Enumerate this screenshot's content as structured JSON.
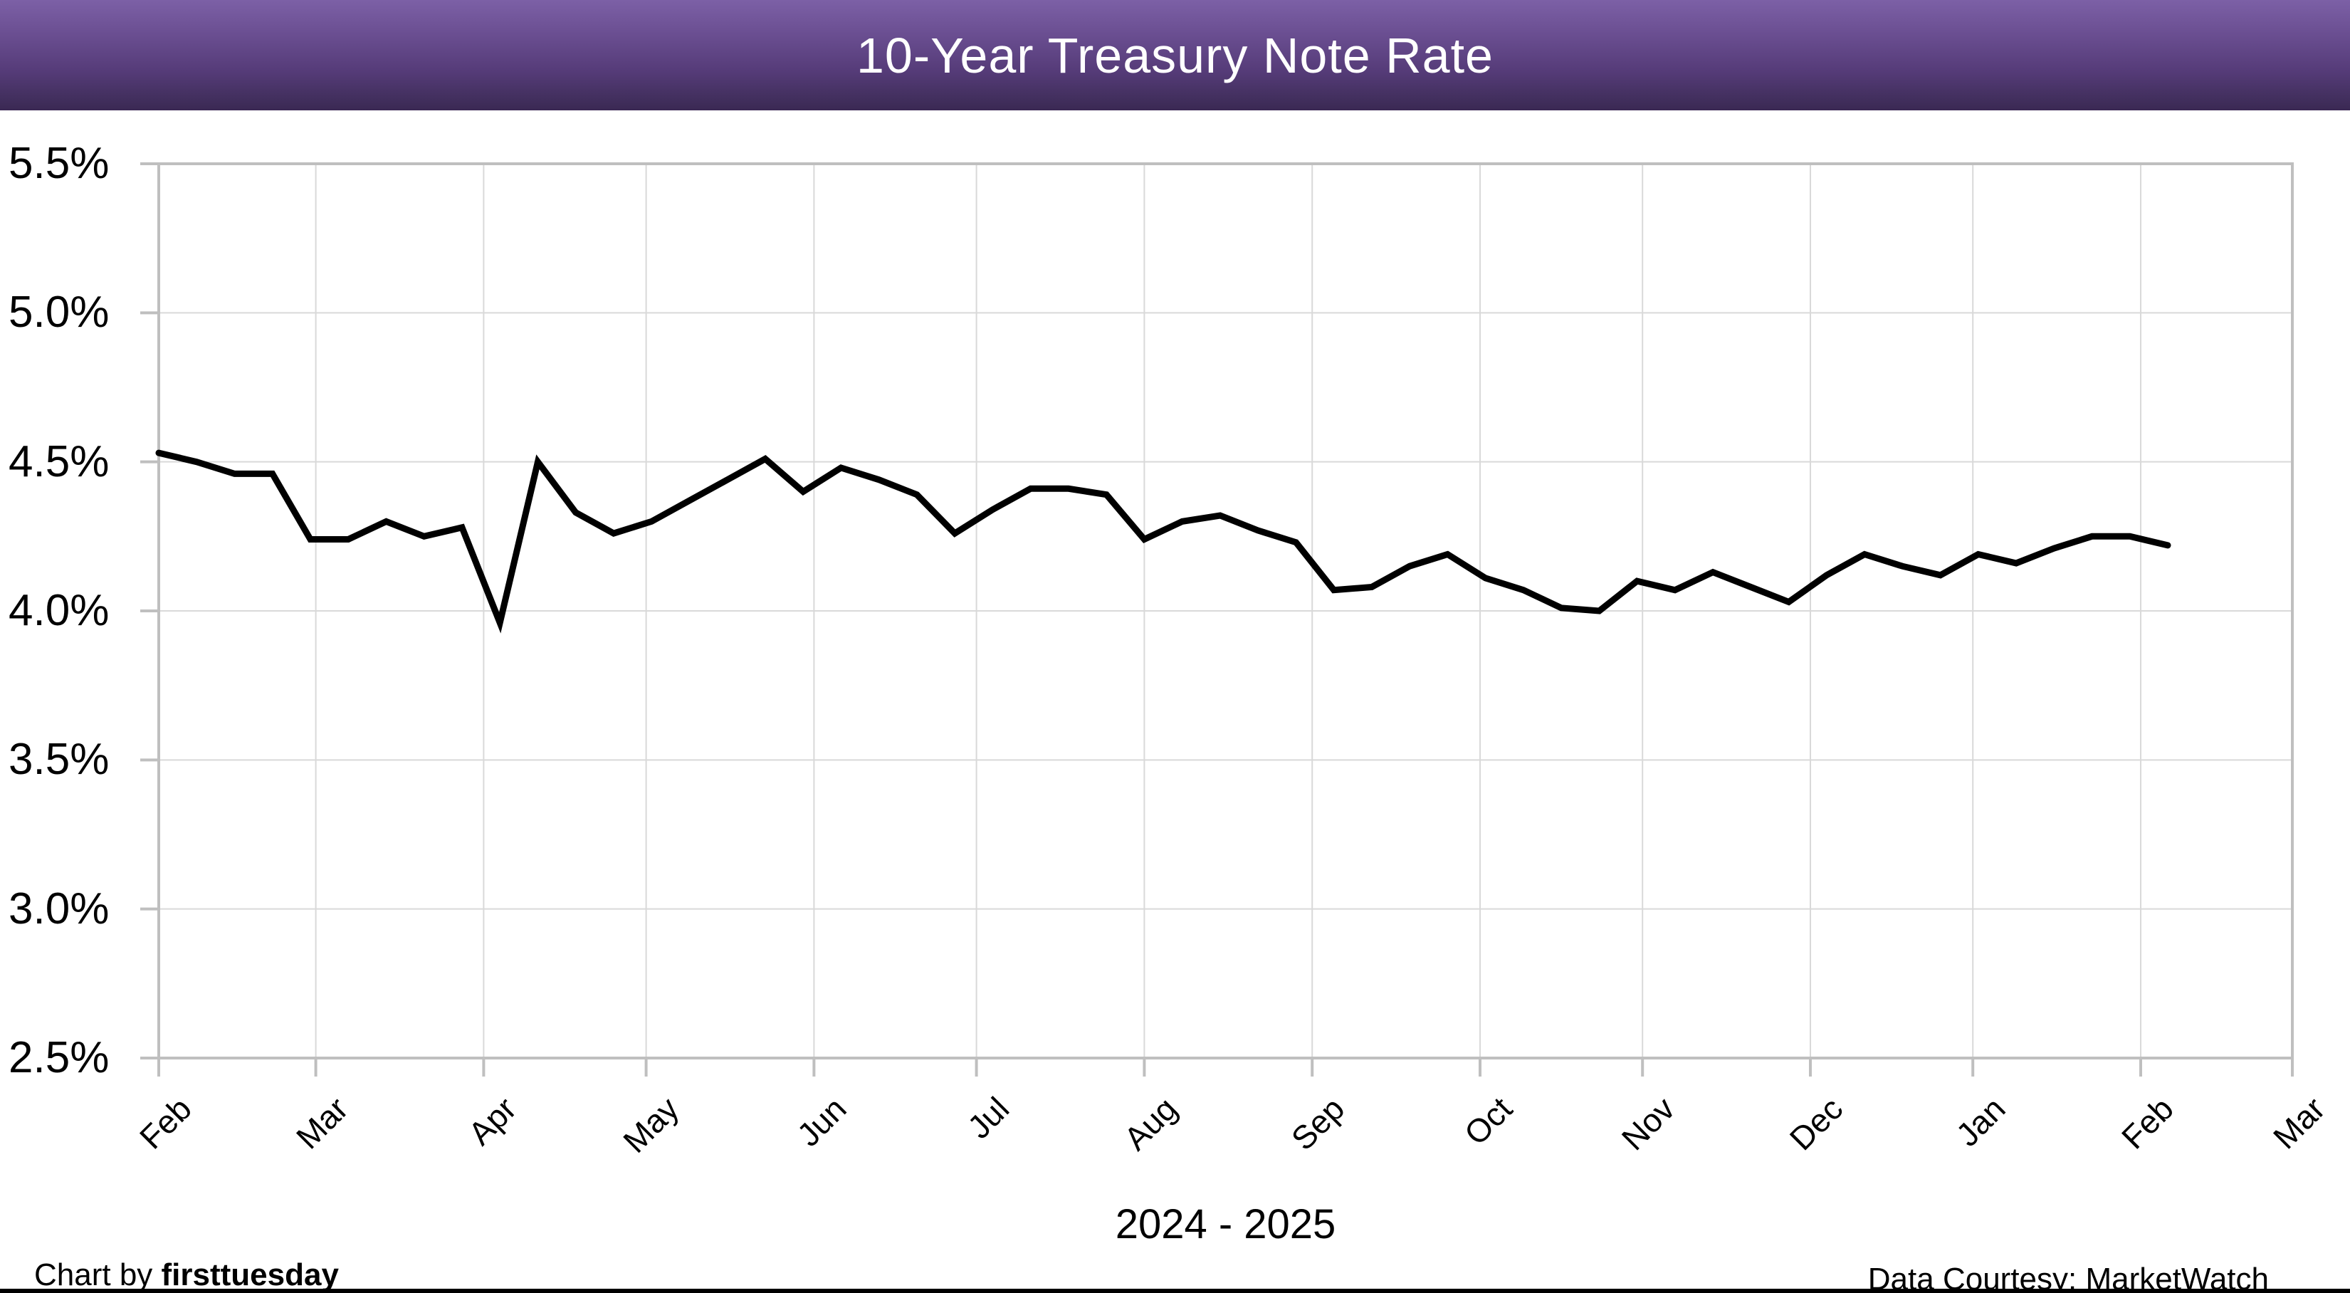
{
  "header": {
    "title": "10-Year Treasury Note Rate"
  },
  "footer": {
    "credit_prefix": "Chart by ",
    "credit_name": "firsttuesday",
    "data_courtesy": "Data Courtesy: MarketWatch"
  },
  "colors": {
    "header_purple_top": "#7c60a6",
    "header_purple_bottom": "#3a2853",
    "title_text": "#ffffff",
    "line": "#000000",
    "gridline": "#d9d9d9",
    "axis": "#bfbfbf",
    "text": "#000000"
  },
  "chart_data": {
    "type": "line",
    "title": "10-Year Treasury Note Rate",
    "xlabel": "2024 - 2025",
    "ylabel": "",
    "ylim": [
      2.5,
      5.5
    ],
    "grid": true,
    "legend": "none",
    "y_ticks": {
      "labels": [
        "5.5%",
        "5.0%",
        "4.5%",
        "4.0%",
        "3.5%",
        "3.0%",
        "2.5%"
      ],
      "values": [
        5.5,
        5.0,
        4.5,
        4.0,
        3.5,
        3.0,
        2.5
      ]
    },
    "x_ticks": {
      "labels": [
        "Feb",
        "Mar",
        "Apr",
        "May",
        "Jun",
        "Jul",
        "Aug",
        "Sep",
        "Oct",
        "Nov",
        "Dec",
        "Jan",
        "Feb",
        "Mar"
      ],
      "day_offsets": [
        0,
        29,
        60,
        90,
        121,
        151,
        182,
        213,
        244,
        274,
        305,
        335,
        366,
        394
      ],
      "span_days": 394
    },
    "series": [
      {
        "name": "10-Year Treasury Note Rate",
        "frequency": "weekly",
        "start": "Feb 2024",
        "values": [
          4.53,
          4.5,
          4.46,
          4.46,
          4.24,
          4.24,
          4.3,
          4.25,
          4.28,
          3.96,
          4.5,
          4.33,
          4.26,
          4.3,
          4.37,
          4.44,
          4.51,
          4.4,
          4.48,
          4.44,
          4.39,
          4.26,
          4.34,
          4.41,
          4.41,
          4.39,
          4.24,
          4.3,
          4.32,
          4.27,
          4.23,
          4.07,
          4.08,
          4.15,
          4.19,
          4.11,
          4.07,
          4.01,
          4.0,
          4.1,
          4.07,
          4.13,
          4.08,
          4.03,
          4.12,
          4.19,
          4.15,
          4.12,
          4.19,
          4.16,
          4.21,
          4.25,
          4.25,
          4.22
        ]
      }
    ]
  }
}
